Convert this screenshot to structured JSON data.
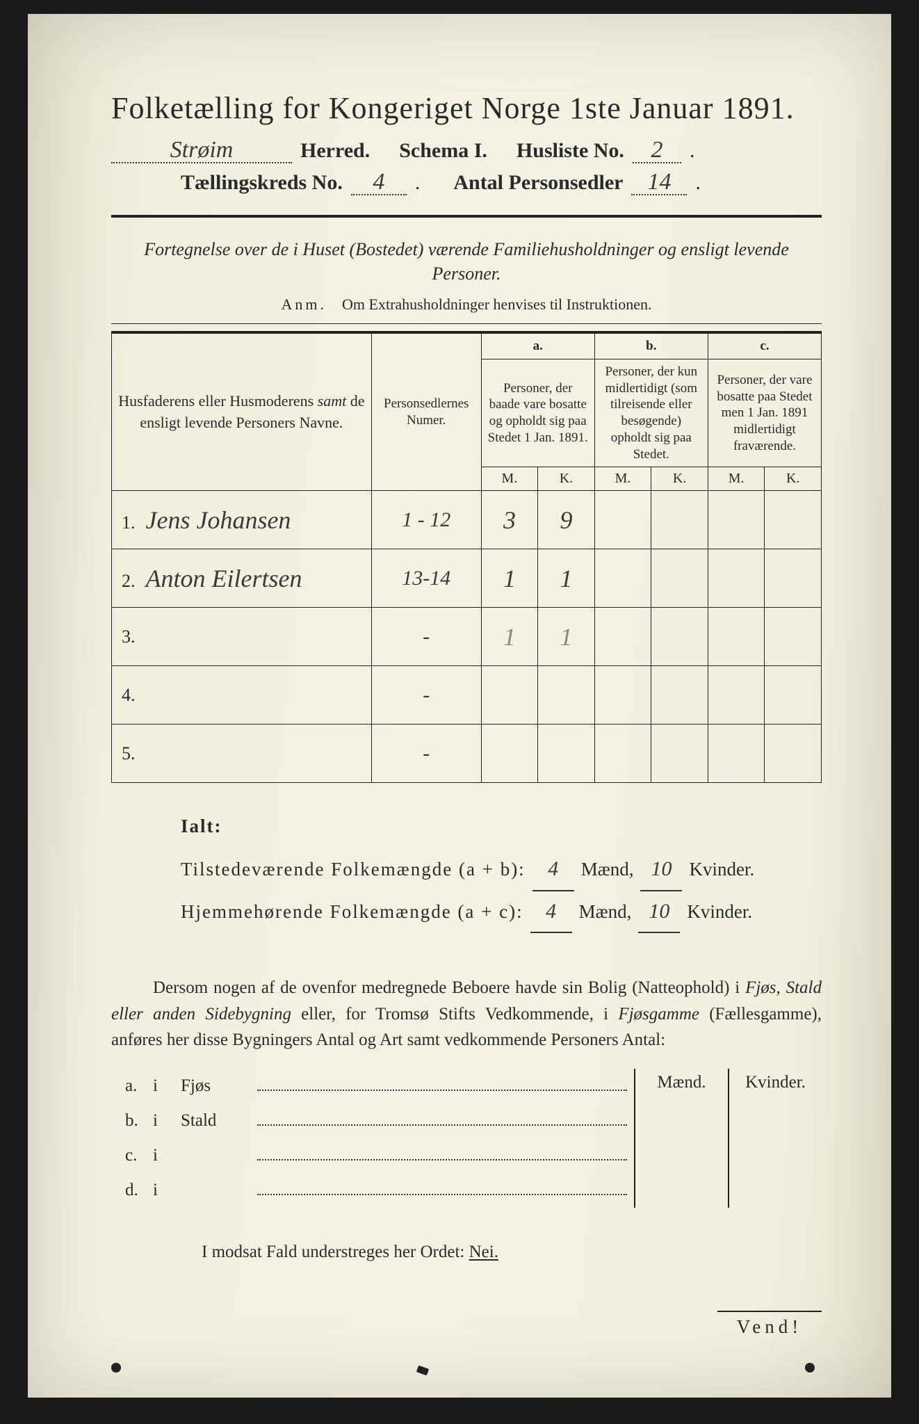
{
  "colors": {
    "page_bg": "#f2efdf",
    "ink": "#2a2a2a",
    "handwriting": "#3a3a3a",
    "faded_pencil": "#8a8a7a",
    "outer_bg": "#1a1a1a"
  },
  "header": {
    "title": "Folketælling for Kongeriget Norge 1ste Januar 1891.",
    "herred_name": "Strøim",
    "herred_label": "Herred.",
    "schema_label": "Schema I.",
    "husliste_label": "Husliste No.",
    "husliste_no": "2",
    "kreds_label": "Tællingskreds No.",
    "kreds_no": "4",
    "antal_label": "Antal Personsedler",
    "antal_val": "14"
  },
  "subheader": {
    "fortegnelse": "Fortegnelse over de i Huset (Bostedet) værende Familiehusholdninger og ensligt levende Personer.",
    "anm_label": "Anm.",
    "anm_text": "Om Extrahusholdninger henvises til Instruktionen."
  },
  "table": {
    "col_name": "Husfaderens eller Husmoderens samt de ensligt levende Personers Navne.",
    "col_numer": "Personsedlernes Numer.",
    "col_a_top": "a.",
    "col_a": "Personer, der baade vare bosatte og opholdt sig paa Stedet 1 Jan. 1891.",
    "col_b_top": "b.",
    "col_b": "Personer, der kun midlertidigt (som tilreisende eller besøgende) opholdt sig paa Stedet.",
    "col_c_top": "c.",
    "col_c": "Personer, der vare bosatte paa Stedet men 1 Jan. 1891 midlertidigt fraværende.",
    "m": "M.",
    "k": "K.",
    "rows": [
      {
        "n": "1.",
        "name": "Jens Johansen",
        "numer": "1 - 12",
        "a_m": "3",
        "a_k": "9",
        "b_m": "",
        "b_k": "",
        "c_m": "",
        "c_k": ""
      },
      {
        "n": "2.",
        "name": "Anton Eilertsen",
        "numer": "13-14",
        "a_m": "1",
        "a_k": "1",
        "b_m": "",
        "b_k": "",
        "c_m": "",
        "c_k": ""
      },
      {
        "n": "3.",
        "name": "",
        "numer": "-",
        "a_m": "1",
        "a_k": "1",
        "b_m": "",
        "b_k": "",
        "c_m": "",
        "c_k": "",
        "faded": true
      },
      {
        "n": "4.",
        "name": "",
        "numer": "-",
        "a_m": "",
        "a_k": "",
        "b_m": "",
        "b_k": "",
        "c_m": "",
        "c_k": ""
      },
      {
        "n": "5.",
        "name": "",
        "numer": "-",
        "a_m": "",
        "a_k": "",
        "b_m": "",
        "b_k": "",
        "c_m": "",
        "c_k": ""
      }
    ]
  },
  "ialt": {
    "heading": "Ialt:",
    "line1_label": "Tilstedeværende Folkemængde (a + b):",
    "line1_m": "4",
    "line1_k": "10",
    "line2_label": "Hjemmehørende Folkemængde (a + c):",
    "line2_m": "4",
    "line2_k": "10",
    "maend": "Mænd,",
    "kvinder": "Kvinder."
  },
  "dersom": {
    "text1": "Dersom nogen af de ovenfor medregnede Beboere havde sin Bolig (Natteophold) i ",
    "ital1": "Fjøs, Stald eller anden Sidebygning",
    "text2": " eller, for Tromsø Stifts Vedkommende, i ",
    "ital2": "Fjøsgamme",
    "text3": " (Fællesgamme), anføres her disse Bygningers Antal og Art samt vedkommende Personers Antal:"
  },
  "side": {
    "maend": "Mænd.",
    "kvinder": "Kvinder.",
    "rows": [
      {
        "lab": "a.",
        "i": "i",
        "type": "Fjøs"
      },
      {
        "lab": "b.",
        "i": "i",
        "type": "Stald"
      },
      {
        "lab": "c.",
        "i": "i",
        "type": ""
      },
      {
        "lab": "d.",
        "i": "i",
        "type": ""
      }
    ]
  },
  "modsat": {
    "text": "I modsat Fald understreges her Ordet: ",
    "nei": "Nei."
  },
  "vend": "Vend!"
}
